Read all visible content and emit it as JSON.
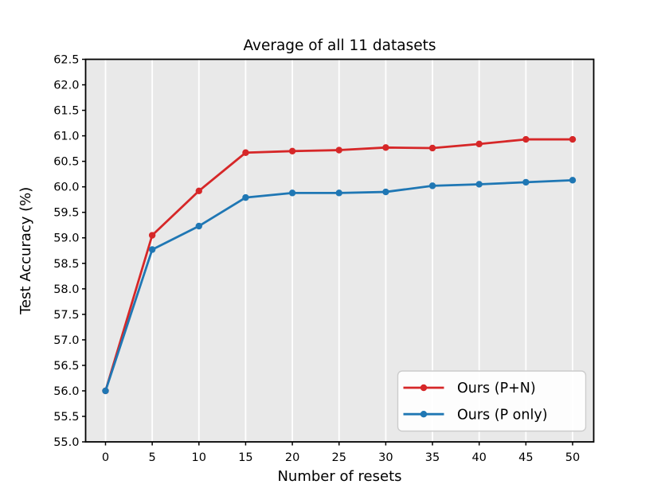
{
  "chart_data": {
    "type": "line",
    "title": "Average of all 11 datasets",
    "xlabel": "Number of resets",
    "ylabel": "Test Accuracy (%)",
    "x": [
      0,
      5,
      10,
      15,
      20,
      25,
      30,
      35,
      40,
      45,
      50
    ],
    "series": [
      {
        "name": "Ours (P+N)",
        "color": "#d62728",
        "values": [
          56.0,
          59.05,
          59.92,
          60.67,
          60.7,
          60.72,
          60.77,
          60.76,
          60.84,
          60.93,
          60.93
        ]
      },
      {
        "name": "Ours (P only)",
        "color": "#1f77b4",
        "values": [
          56.0,
          58.77,
          59.23,
          59.79,
          59.88,
          59.88,
          59.9,
          60.02,
          60.05,
          60.09,
          60.13
        ]
      }
    ],
    "xticks": [
      0,
      5,
      10,
      15,
      20,
      25,
      30,
      35,
      40,
      45,
      50
    ],
    "yticks": [
      55.0,
      55.5,
      56.0,
      56.5,
      57.0,
      57.5,
      58.0,
      58.5,
      59.0,
      59.5,
      60.0,
      60.5,
      61.0,
      61.5,
      62.0,
      62.5
    ],
    "xlim": [
      -2.13,
      52.26
    ],
    "ylim": [
      55.0,
      62.5
    ],
    "grid": "vertical-only",
    "legend_position": "lower right",
    "colors": {
      "plot_background": "#e9e9e9",
      "gridline": "#ffffff",
      "spine": "#000000",
      "tick": "#000000",
      "text": "#000000",
      "legend_background": "#ffffff",
      "legend_border": "#cccccc"
    }
  }
}
